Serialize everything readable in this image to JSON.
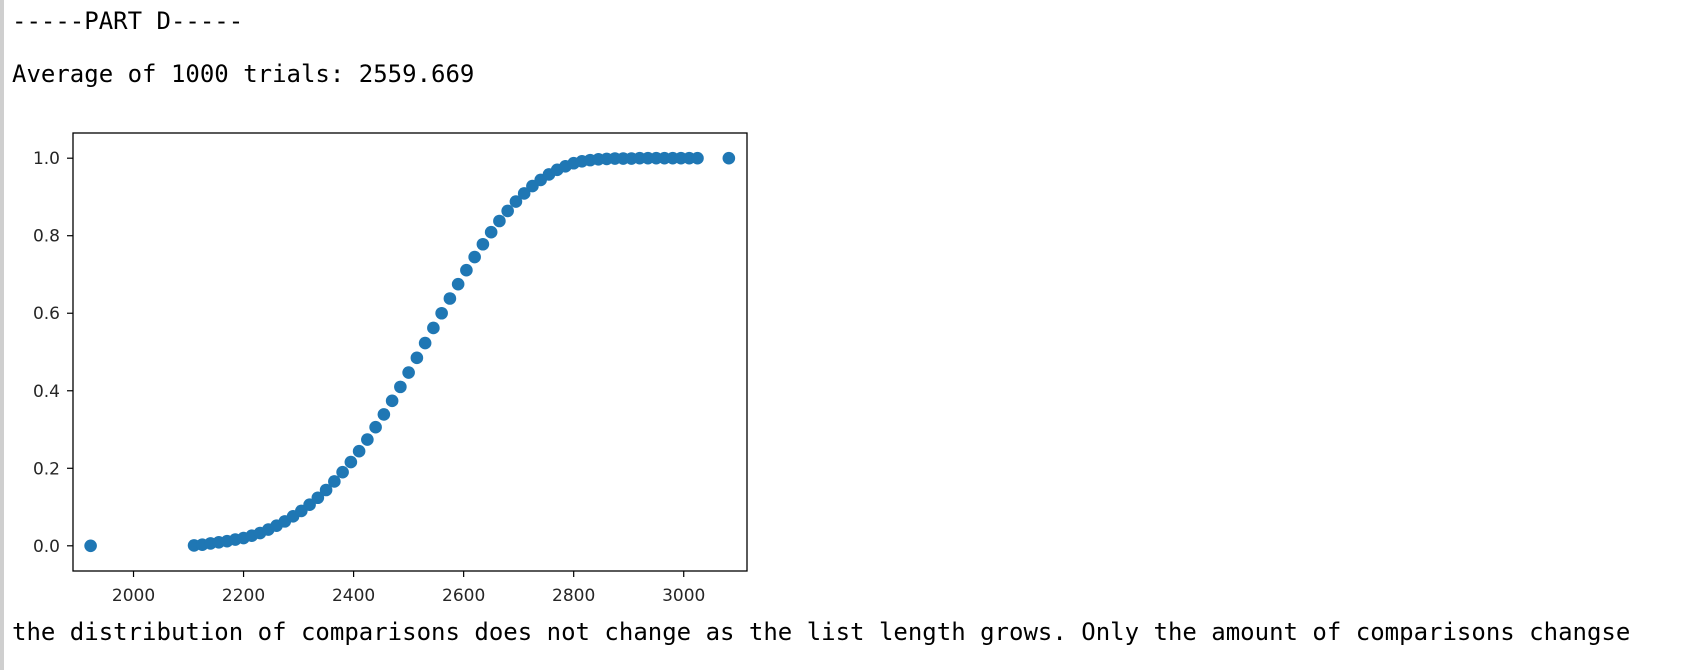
{
  "output": {
    "line1": "-----PART D-----",
    "line2": "Average of 1000 trials: 2559.669",
    "line3": "the distribution of comparisons does not change as the list length grows. Only the amount of comparisons changse"
  },
  "chart_data": {
    "type": "scatter",
    "title": "",
    "xlabel": "",
    "ylabel": "",
    "xlim": [
      1890,
      3115
    ],
    "ylim": [
      -0.065,
      1.065
    ],
    "xticks": [
      2000,
      2200,
      2400,
      2600,
      2800,
      3000
    ],
    "yticks": [
      0.0,
      0.2,
      0.4,
      0.6,
      0.8,
      1.0
    ],
    "xticklabels": [
      "2000",
      "2200",
      "2400",
      "2600",
      "2800",
      "3000"
    ],
    "yticklabels": [
      "0.0",
      "0.2",
      "0.4",
      "0.6",
      "0.8",
      "1.0"
    ],
    "grid": false,
    "color": "#1f77b4",
    "series": [
      {
        "x": [
          1922,
          2110,
          2125,
          2140,
          2155,
          2170,
          2185,
          2200,
          2215,
          2230,
          2245,
          2260,
          2275,
          2290,
          2305,
          2320,
          2335,
          2350,
          2365,
          2380,
          2395,
          2410,
          2425,
          2440,
          2455,
          2470,
          2485,
          2500,
          2515,
          2530,
          2545,
          2560,
          2575,
          2590,
          2605,
          2620,
          2635,
          2650,
          2665,
          2680,
          2695,
          2710,
          2725,
          2740,
          2755,
          2770,
          2785,
          2800,
          2815,
          2830,
          2845,
          2860,
          2875,
          2890,
          2905,
          2920,
          2935,
          2950,
          2965,
          2980,
          2995,
          3010,
          3025,
          3082
        ],
        "y": [
          0.0,
          0.001,
          0.003,
          0.006,
          0.009,
          0.012,
          0.016,
          0.02,
          0.026,
          0.033,
          0.042,
          0.052,
          0.063,
          0.076,
          0.09,
          0.106,
          0.124,
          0.144,
          0.166,
          0.19,
          0.216,
          0.244,
          0.274,
          0.306,
          0.339,
          0.374,
          0.41,
          0.447,
          0.485,
          0.523,
          0.562,
          0.6,
          0.638,
          0.675,
          0.711,
          0.745,
          0.778,
          0.809,
          0.838,
          0.864,
          0.888,
          0.909,
          0.928,
          0.944,
          0.958,
          0.97,
          0.979,
          0.987,
          0.992,
          0.995,
          0.997,
          0.998,
          0.999,
          0.999,
          0.999,
          1.0,
          1.0,
          1.0,
          1.0,
          1.0,
          1.0,
          1.0,
          1.0,
          1.0
        ]
      }
    ]
  }
}
